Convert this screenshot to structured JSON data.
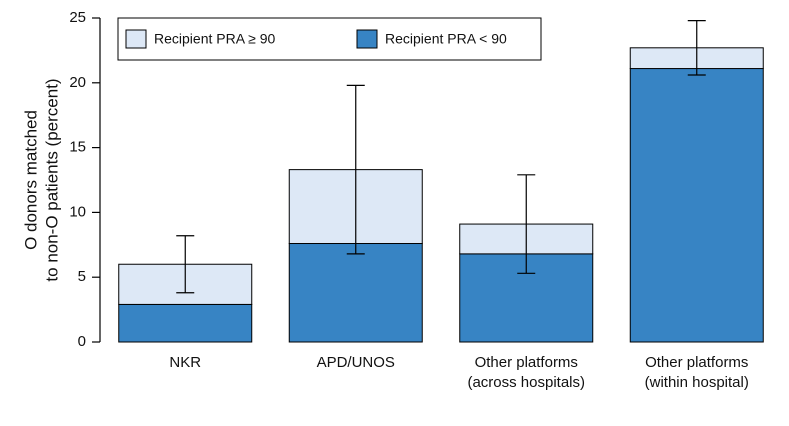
{
  "chart_data": {
    "type": "stacked-bar",
    "categories": [
      [
        "NKR"
      ],
      [
        "APD/UNOS"
      ],
      [
        "Other platforms",
        "(across hospitals)"
      ],
      [
        "Other platforms",
        "(within hospital)"
      ]
    ],
    "ylabel": [
      "O donors matched",
      "to non-O patients (percent)"
    ],
    "series": [
      {
        "name": "Recipient PRA ≥ 90",
        "color": "#dde8f6",
        "values": [
          3.1,
          5.7,
          2.3,
          1.6
        ]
      },
      {
        "name": "Recipient PRA < 90",
        "color": "#3784c4",
        "values": [
          2.9,
          7.6,
          6.8,
          21.1
        ]
      }
    ],
    "errors": [
      2.2,
      6.5,
      3.8,
      2.1
    ],
    "ylim": [
      0,
      25
    ],
    "yticks": [
      0,
      5,
      10,
      15,
      20,
      25
    ],
    "legend": "top-left"
  }
}
